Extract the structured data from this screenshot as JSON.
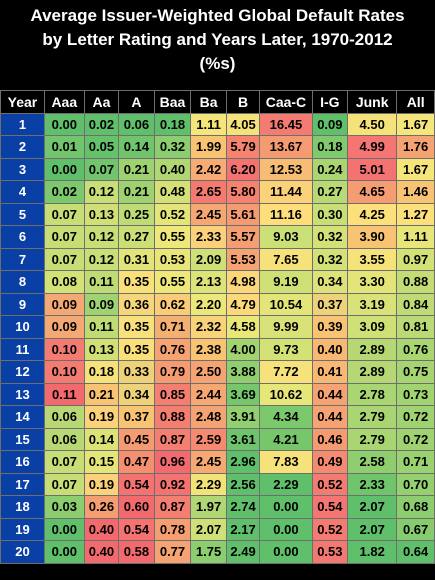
{
  "title": {
    "line1": "Average Issuer-Weighted Global Default Rates",
    "line2": "by Letter Rating and Years Later, 1970-2012",
    "line3": "(%s)"
  },
  "headers": [
    "Year",
    "Aaa",
    "Aa",
    "A",
    "Baa",
    "Ba",
    "B",
    "Caa-C",
    "I-G",
    "Junk",
    "All"
  ],
  "rows": [
    {
      "year": "1",
      "cells": [
        [
          "0.00",
          "#5fbf6a"
        ],
        [
          "0.02",
          "#5fbf6a"
        ],
        [
          "0.06",
          "#5fbf6a"
        ],
        [
          "0.18",
          "#5fbf6a"
        ],
        [
          "1.11",
          "#f4e67a"
        ],
        [
          "4.05",
          "#f5e27a"
        ],
        [
          "16.45",
          "#f47b72"
        ],
        [
          "0.09",
          "#5fbf6a"
        ],
        [
          "4.50",
          "#f5e27a"
        ],
        [
          "1.67",
          "#f4e67a"
        ]
      ]
    },
    {
      "year": "2",
      "cells": [
        [
          "0.01",
          "#72c56c"
        ],
        [
          "0.05",
          "#66c16b"
        ],
        [
          "0.14",
          "#6fc46c"
        ],
        [
          "0.32",
          "#8ccd6f"
        ],
        [
          "1.99",
          "#f8c474"
        ],
        [
          "5.79",
          "#f4836f"
        ],
        [
          "13.67",
          "#f59b72"
        ],
        [
          "0.18",
          "#80c96d"
        ],
        [
          "4.99",
          "#f47572"
        ],
        [
          "1.76",
          "#f5a373"
        ]
      ]
    },
    {
      "year": "3",
      "cells": [
        [
          "0.00",
          "#5fbf6a"
        ],
        [
          "0.07",
          "#72c56c"
        ],
        [
          "0.21",
          "#9ed271"
        ],
        [
          "0.40",
          "#b0d773"
        ],
        [
          "2.42",
          "#f7ac73"
        ],
        [
          "6.20",
          "#f47270"
        ],
        [
          "12.53",
          "#f8bd74"
        ],
        [
          "0.24",
          "#a9d572"
        ],
        [
          "5.01",
          "#f47272"
        ],
        [
          "1.67",
          "#f4e67a"
        ]
      ]
    },
    {
      "year": "4",
      "cells": [
        [
          "0.02",
          "#7bc86d"
        ],
        [
          "0.12",
          "#c8de76"
        ],
        [
          "0.21",
          "#9ed271"
        ],
        [
          "0.48",
          "#d3e177"
        ],
        [
          "2.65",
          "#f47a70"
        ],
        [
          "5.80",
          "#f4826f"
        ],
        [
          "11.44",
          "#fbd27a"
        ],
        [
          "0.27",
          "#b9d974"
        ],
        [
          "4.65",
          "#f59c72"
        ],
        [
          "1.46",
          "#f8c474"
        ]
      ]
    },
    {
      "year": "5",
      "cells": [
        [
          "0.07",
          "#c7de76"
        ],
        [
          "0.13",
          "#d0e077"
        ],
        [
          "0.25",
          "#bfdb75"
        ],
        [
          "0.52",
          "#e3e578"
        ],
        [
          "2.45",
          "#f6a873"
        ],
        [
          "5.61",
          "#f59b72"
        ],
        [
          "11.16",
          "#fdde7b"
        ],
        [
          "0.30",
          "#c8de76"
        ],
        [
          "4.25",
          "#fce07b"
        ],
        [
          "1.27",
          "#fce07b"
        ]
      ]
    },
    {
      "year": "6",
      "cells": [
        [
          "0.07",
          "#c7de76"
        ],
        [
          "0.12",
          "#c8de76"
        ],
        [
          "0.27",
          "#cadf76"
        ],
        [
          "0.55",
          "#eee779"
        ],
        [
          "2.33",
          "#fad07a"
        ],
        [
          "5.57",
          "#f59e72"
        ],
        [
          "9.03",
          "#cbe077"
        ],
        [
          "0.32",
          "#d3e177"
        ],
        [
          "3.90",
          "#f8c474"
        ],
        [
          "1.11",
          "#e9e679"
        ]
      ]
    },
    {
      "year": "7",
      "cells": [
        [
          "0.07",
          "#c7de76"
        ],
        [
          "0.12",
          "#c8de76"
        ],
        [
          "0.31",
          "#e1e478"
        ],
        [
          "0.53",
          "#e8e679"
        ],
        [
          "2.09",
          "#cee077"
        ],
        [
          "5.53",
          "#f5a373"
        ],
        [
          "7.65",
          "#f5e27a"
        ],
        [
          "0.32",
          "#d3e177"
        ],
        [
          "3.55",
          "#f5e27a"
        ],
        [
          "0.97",
          "#d3e177"
        ]
      ]
    },
    {
      "year": "8",
      "cells": [
        [
          "0.08",
          "#d3e177"
        ],
        [
          "0.11",
          "#bfdb75"
        ],
        [
          "0.35",
          "#f8e07b"
        ],
        [
          "0.55",
          "#eee779"
        ],
        [
          "2.13",
          "#dce378"
        ],
        [
          "4.98",
          "#fcd67a"
        ],
        [
          "9.19",
          "#cfe077"
        ],
        [
          "0.34",
          "#dde378"
        ],
        [
          "3.30",
          "#e3e578"
        ],
        [
          "0.88",
          "#c4dc75"
        ]
      ]
    },
    {
      "year": "9",
      "cells": [
        [
          "0.09",
          "#f4a873"
        ],
        [
          "0.09",
          "#9fd271"
        ],
        [
          "0.36",
          "#f5d67a"
        ],
        [
          "0.62",
          "#fbcb78"
        ],
        [
          "2.20",
          "#ece779"
        ],
        [
          "4.79",
          "#fbd97a"
        ],
        [
          "10.54",
          "#e4e578"
        ],
        [
          "0.37",
          "#edd27a"
        ],
        [
          "3.19",
          "#d8e278"
        ],
        [
          "0.84",
          "#c0db75"
        ]
      ]
    },
    {
      "year": "10",
      "cells": [
        [
          "0.09",
          "#f4a873"
        ],
        [
          "0.11",
          "#bfdb75"
        ],
        [
          "0.35",
          "#f8e07b"
        ],
        [
          "0.71",
          "#f4b073"
        ],
        [
          "2.32",
          "#f8d37a"
        ],
        [
          "4.58",
          "#eae779"
        ],
        [
          "9.99",
          "#d8e278"
        ],
        [
          "0.39",
          "#f8c474"
        ],
        [
          "3.09",
          "#cfe077"
        ],
        [
          "0.81",
          "#bbd974"
        ]
      ]
    },
    {
      "year": "11",
      "cells": [
        [
          "0.10",
          "#f47b72"
        ],
        [
          "0.13",
          "#d0e077"
        ],
        [
          "0.35",
          "#f8e07b"
        ],
        [
          "0.76",
          "#f5a373"
        ],
        [
          "2.38",
          "#f8c474"
        ],
        [
          "4.00",
          "#a2d371"
        ],
        [
          "9.73",
          "#d3e177"
        ],
        [
          "0.40",
          "#f8b874"
        ],
        [
          "2.89",
          "#b6d874"
        ],
        [
          "0.76",
          "#a9d572"
        ]
      ]
    },
    {
      "year": "12",
      "cells": [
        [
          "0.10",
          "#f47b72"
        ],
        [
          "0.18",
          "#f5e27a"
        ],
        [
          "0.33",
          "#edd27a"
        ],
        [
          "0.79",
          "#f59b72"
        ],
        [
          "2.50",
          "#f5a373"
        ],
        [
          "3.88",
          "#90cf6f"
        ],
        [
          "7.72",
          "#f5e27a"
        ],
        [
          "0.41",
          "#f8b874"
        ],
        [
          "2.89",
          "#b6d874"
        ],
        [
          "0.75",
          "#a6d472"
        ]
      ]
    },
    {
      "year": "13",
      "cells": [
        [
          "0.11",
          "#f26a6e"
        ],
        [
          "0.21",
          "#f8c474"
        ],
        [
          "0.34",
          "#edd27a"
        ],
        [
          "0.85",
          "#f47f70"
        ],
        [
          "2.44",
          "#f6a873"
        ],
        [
          "3.69",
          "#76c66c"
        ],
        [
          "10.62",
          "#e7e679"
        ],
        [
          "0.44",
          "#f5a373"
        ],
        [
          "2.78",
          "#a9d572"
        ],
        [
          "0.73",
          "#a2d371"
        ]
      ]
    },
    {
      "year": "14",
      "cells": [
        [
          "0.06",
          "#b7d874"
        ],
        [
          "0.19",
          "#fbd27a"
        ],
        [
          "0.37",
          "#f8c474"
        ],
        [
          "0.88",
          "#f47f70"
        ],
        [
          "2.48",
          "#f5a373"
        ],
        [
          "3.91",
          "#92cf6f"
        ],
        [
          "4.34",
          "#7bc86d"
        ],
        [
          "0.44",
          "#f5a373"
        ],
        [
          "2.79",
          "#a9d572"
        ],
        [
          "0.72",
          "#9fd271"
        ]
      ]
    },
    {
      "year": "15",
      "cells": [
        [
          "0.06",
          "#b7d874"
        ],
        [
          "0.14",
          "#dae278"
        ],
        [
          "0.45",
          "#f59b72"
        ],
        [
          "0.87",
          "#f47f70"
        ],
        [
          "2.59",
          "#f58a70"
        ],
        [
          "3.61",
          "#6ec46c"
        ],
        [
          "4.21",
          "#76c66c"
        ],
        [
          "0.46",
          "#f59b72"
        ],
        [
          "2.79",
          "#a9d572"
        ],
        [
          "0.72",
          "#9fd271"
        ]
      ]
    },
    {
      "year": "16",
      "cells": [
        [
          "0.07",
          "#c7de76"
        ],
        [
          "0.15",
          "#e3e578"
        ],
        [
          "0.47",
          "#f58f70"
        ],
        [
          "0.96",
          "#f26a6e"
        ],
        [
          "2.45",
          "#f6a873"
        ],
        [
          "2.96",
          "#5fbf6a"
        ],
        [
          "7.83",
          "#f5e27a"
        ],
        [
          "0.49",
          "#f58a70"
        ],
        [
          "2.58",
          "#8fce6f"
        ],
        [
          "0.71",
          "#9ad171"
        ]
      ]
    },
    {
      "year": "17",
      "cells": [
        [
          "0.07",
          "#c7de76"
        ],
        [
          "0.19",
          "#fbd27a"
        ],
        [
          "0.54",
          "#f47270"
        ],
        [
          "0.92",
          "#f47270"
        ],
        [
          "2.29",
          "#f2e379"
        ],
        [
          "2.56",
          "#5fbf6a"
        ],
        [
          "2.29",
          "#5fbf6a"
        ],
        [
          "0.52",
          "#f47b72"
        ],
        [
          "2.33",
          "#70c46c"
        ],
        [
          "0.70",
          "#95d070"
        ]
      ]
    },
    {
      "year": "18",
      "cells": [
        [
          "0.03",
          "#8ccd6f"
        ],
        [
          "0.26",
          "#f59e72"
        ],
        [
          "0.60",
          "#f26a6e"
        ],
        [
          "0.87",
          "#f47f70"
        ],
        [
          "1.97",
          "#b0d773"
        ],
        [
          "2.74",
          "#5fbf6a"
        ],
        [
          "0.00",
          "#5fbf6a"
        ],
        [
          "0.54",
          "#f47572"
        ],
        [
          "2.07",
          "#5fbf6a"
        ],
        [
          "0.68",
          "#8ccd6f"
        ]
      ]
    },
    {
      "year": "19",
      "cells": [
        [
          "0.00",
          "#5fbf6a"
        ],
        [
          "0.40",
          "#f26a6e"
        ],
        [
          "0.54",
          "#f47270"
        ],
        [
          "0.78",
          "#f59e72"
        ],
        [
          "2.07",
          "#cee077"
        ],
        [
          "2.17",
          "#5fbf6a"
        ],
        [
          "0.00",
          "#5fbf6a"
        ],
        [
          "0.52",
          "#f47b72"
        ],
        [
          "2.07",
          "#5fbf6a"
        ],
        [
          "0.67",
          "#86cb6e"
        ]
      ]
    },
    {
      "year": "20",
      "cells": [
        [
          "0.00",
          "#5fbf6a"
        ],
        [
          "0.40",
          "#f26a6e"
        ],
        [
          "0.58",
          "#f26a6e"
        ],
        [
          "0.77",
          "#f5a373"
        ],
        [
          "1.75",
          "#8ccd6f"
        ],
        [
          "2.49",
          "#5fbf6a"
        ],
        [
          "0.00",
          "#5fbf6a"
        ],
        [
          "0.53",
          "#f47872"
        ],
        [
          "1.82",
          "#5fbf6a"
        ],
        [
          "0.64",
          "#5fbf6a"
        ]
      ]
    }
  ],
  "colors": {
    "background": "#000000",
    "year_cell": "#0a3fa6",
    "header_text": "#ffffff",
    "grid_line": "#6e6e6e"
  }
}
